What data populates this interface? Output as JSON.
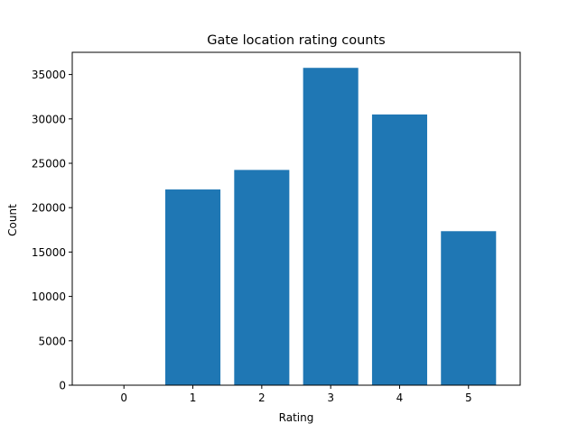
{
  "chart_data": {
    "type": "bar",
    "title": "Gate location rating counts",
    "xlabel": "Rating",
    "ylabel": "Count",
    "categories": [
      "0",
      "1",
      "2",
      "3",
      "4",
      "5"
    ],
    "values": [
      0,
      22050,
      24250,
      35750,
      30500,
      17350
    ],
    "ylim": [
      0,
      37500
    ],
    "yticks": [
      0,
      5000,
      10000,
      15000,
      20000,
      25000,
      30000,
      35000
    ],
    "xlim": [
      -0.75,
      5.75
    ],
    "bar_color": "#1f77b4",
    "grid": false,
    "legend": "none"
  }
}
